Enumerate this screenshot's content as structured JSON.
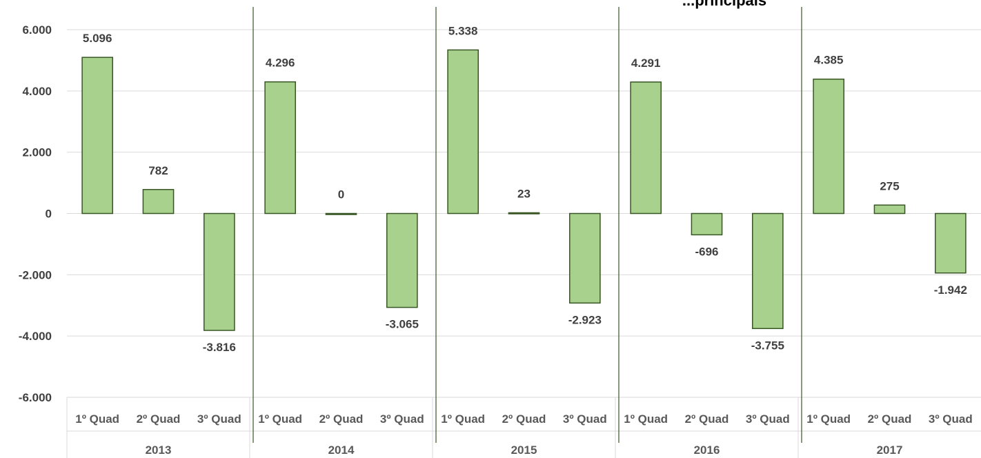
{
  "chart_data": {
    "type": "bar",
    "title": "",
    "title_fragment_visible": "...principais",
    "ylim": [
      -6000,
      6000
    ],
    "yticks": [
      6000,
      4000,
      2000,
      0,
      -2000,
      -4000,
      -6000
    ],
    "ytick_labels": [
      "6.000",
      "4.000",
      "2.000",
      "0",
      "-2.000",
      "-4.000",
      "-6.000"
    ],
    "grid": true,
    "legend": "none",
    "groups": [
      {
        "label": "2013",
        "categories": [
          "1º Quad",
          "2º Quad",
          "3º Quad"
        ],
        "values": [
          5096,
          782,
          -3816
        ],
        "value_labels": [
          "5.096",
          "782",
          "-3.816"
        ]
      },
      {
        "label": "2014",
        "categories": [
          "1º Quad",
          "2º Quad",
          "3º Quad"
        ],
        "values": [
          4296,
          0,
          -3065
        ],
        "value_labels": [
          "4.296",
          "0",
          "-3.065"
        ]
      },
      {
        "label": "2015",
        "categories": [
          "1º Quad",
          "2º Quad",
          "3º Quad"
        ],
        "values": [
          5338,
          23,
          -2923
        ],
        "value_labels": [
          "5.338",
          "23",
          "-2.923"
        ]
      },
      {
        "label": "2016",
        "categories": [
          "1º Quad",
          "2º Quad",
          "3º Quad"
        ],
        "values": [
          4291,
          -696,
          -3755
        ],
        "value_labels": [
          "4.291",
          "-696",
          "-3.755"
        ]
      },
      {
        "label": "2017",
        "categories": [
          "1º Quad",
          "2º Quad",
          "3º Quad"
        ],
        "values": [
          4385,
          275,
          -1942
        ],
        "value_labels": [
          "4.385",
          "275",
          "-1.942"
        ]
      }
    ],
    "colors": {
      "bar_fill": "#a9d18e",
      "bar_stroke": "#375623",
      "separator": "#375623",
      "grid": "#d9d9d9"
    }
  }
}
